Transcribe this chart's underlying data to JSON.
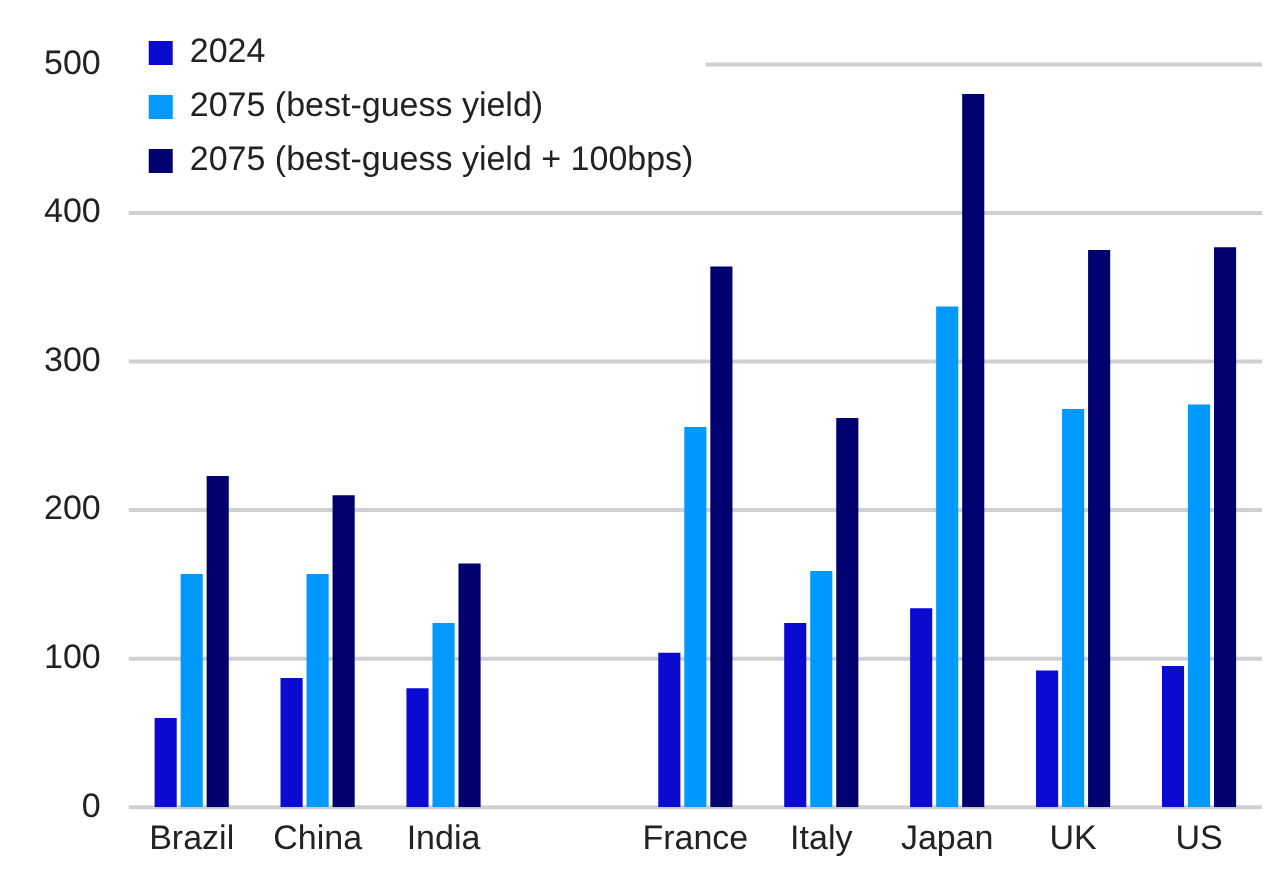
{
  "chart_data": {
    "type": "bar",
    "categories": [
      "Brazil",
      "China",
      "India",
      null,
      "France",
      "Italy",
      "Japan",
      "UK",
      "US"
    ],
    "series": [
      {
        "name": "2024",
        "color": "#0a0ad0",
        "values": [
          60,
          87,
          80,
          null,
          104,
          124,
          134,
          92,
          95
        ]
      },
      {
        "name": "2075 (best-guess yield)",
        "color": "#0099ff",
        "values": [
          157,
          157,
          124,
          null,
          256,
          159,
          337,
          268,
          271
        ]
      },
      {
        "name": "2075 (best-guess yield + 100bps)",
        "color": "#000070",
        "values": [
          223,
          210,
          164,
          null,
          364,
          262,
          480,
          375,
          377
        ]
      }
    ],
    "ylim": [
      0,
      500
    ],
    "yticks": [
      0,
      100,
      200,
      300,
      400,
      500
    ],
    "grid": "y",
    "legend": "top left"
  }
}
